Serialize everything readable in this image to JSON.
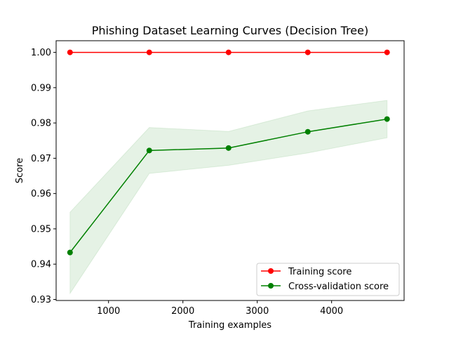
{
  "chart_data": {
    "type": "line",
    "title": "Phishing Dataset Learning Curves (Decision Tree)",
    "xlabel": "Training examples",
    "ylabel": "Score",
    "xlim": [
      295,
      4975
    ],
    "ylim": [
      0.9297,
      1.0033
    ],
    "xticks": [
      1000,
      2000,
      3000,
      4000
    ],
    "xtick_labels": [
      "1000",
      "2000",
      "3000",
      "4000"
    ],
    "yticks": [
      0.93,
      0.94,
      0.95,
      0.96,
      0.97,
      0.98,
      0.99,
      1.0
    ],
    "ytick_labels": [
      "0.93",
      "0.94",
      "0.95",
      "0.96",
      "0.97",
      "0.98",
      "0.99",
      "1.00"
    ],
    "x": [
      482,
      1548,
      2614,
      3680,
      4746
    ],
    "series": [
      {
        "name": "Training score",
        "color": "#ff0000",
        "values": [
          1.0,
          1.0,
          1.0,
          1.0,
          1.0
        ],
        "band_lower": [
          1.0,
          1.0,
          1.0,
          1.0,
          1.0
        ],
        "band_upper": [
          1.0,
          1.0,
          1.0,
          1.0,
          1.0
        ]
      },
      {
        "name": "Cross-validation score",
        "color": "#008000",
        "values": [
          0.9433,
          0.9722,
          0.9729,
          0.9775,
          0.9811
        ],
        "band_lower": [
          0.9317,
          0.9657,
          0.968,
          0.9715,
          0.9758
        ],
        "band_upper": [
          0.9547,
          0.9787,
          0.9776,
          0.9834,
          0.9864
        ]
      }
    ],
    "band_color": "#008000",
    "band_opacity": 0.1,
    "grid": false,
    "legend_position": "lower right"
  }
}
